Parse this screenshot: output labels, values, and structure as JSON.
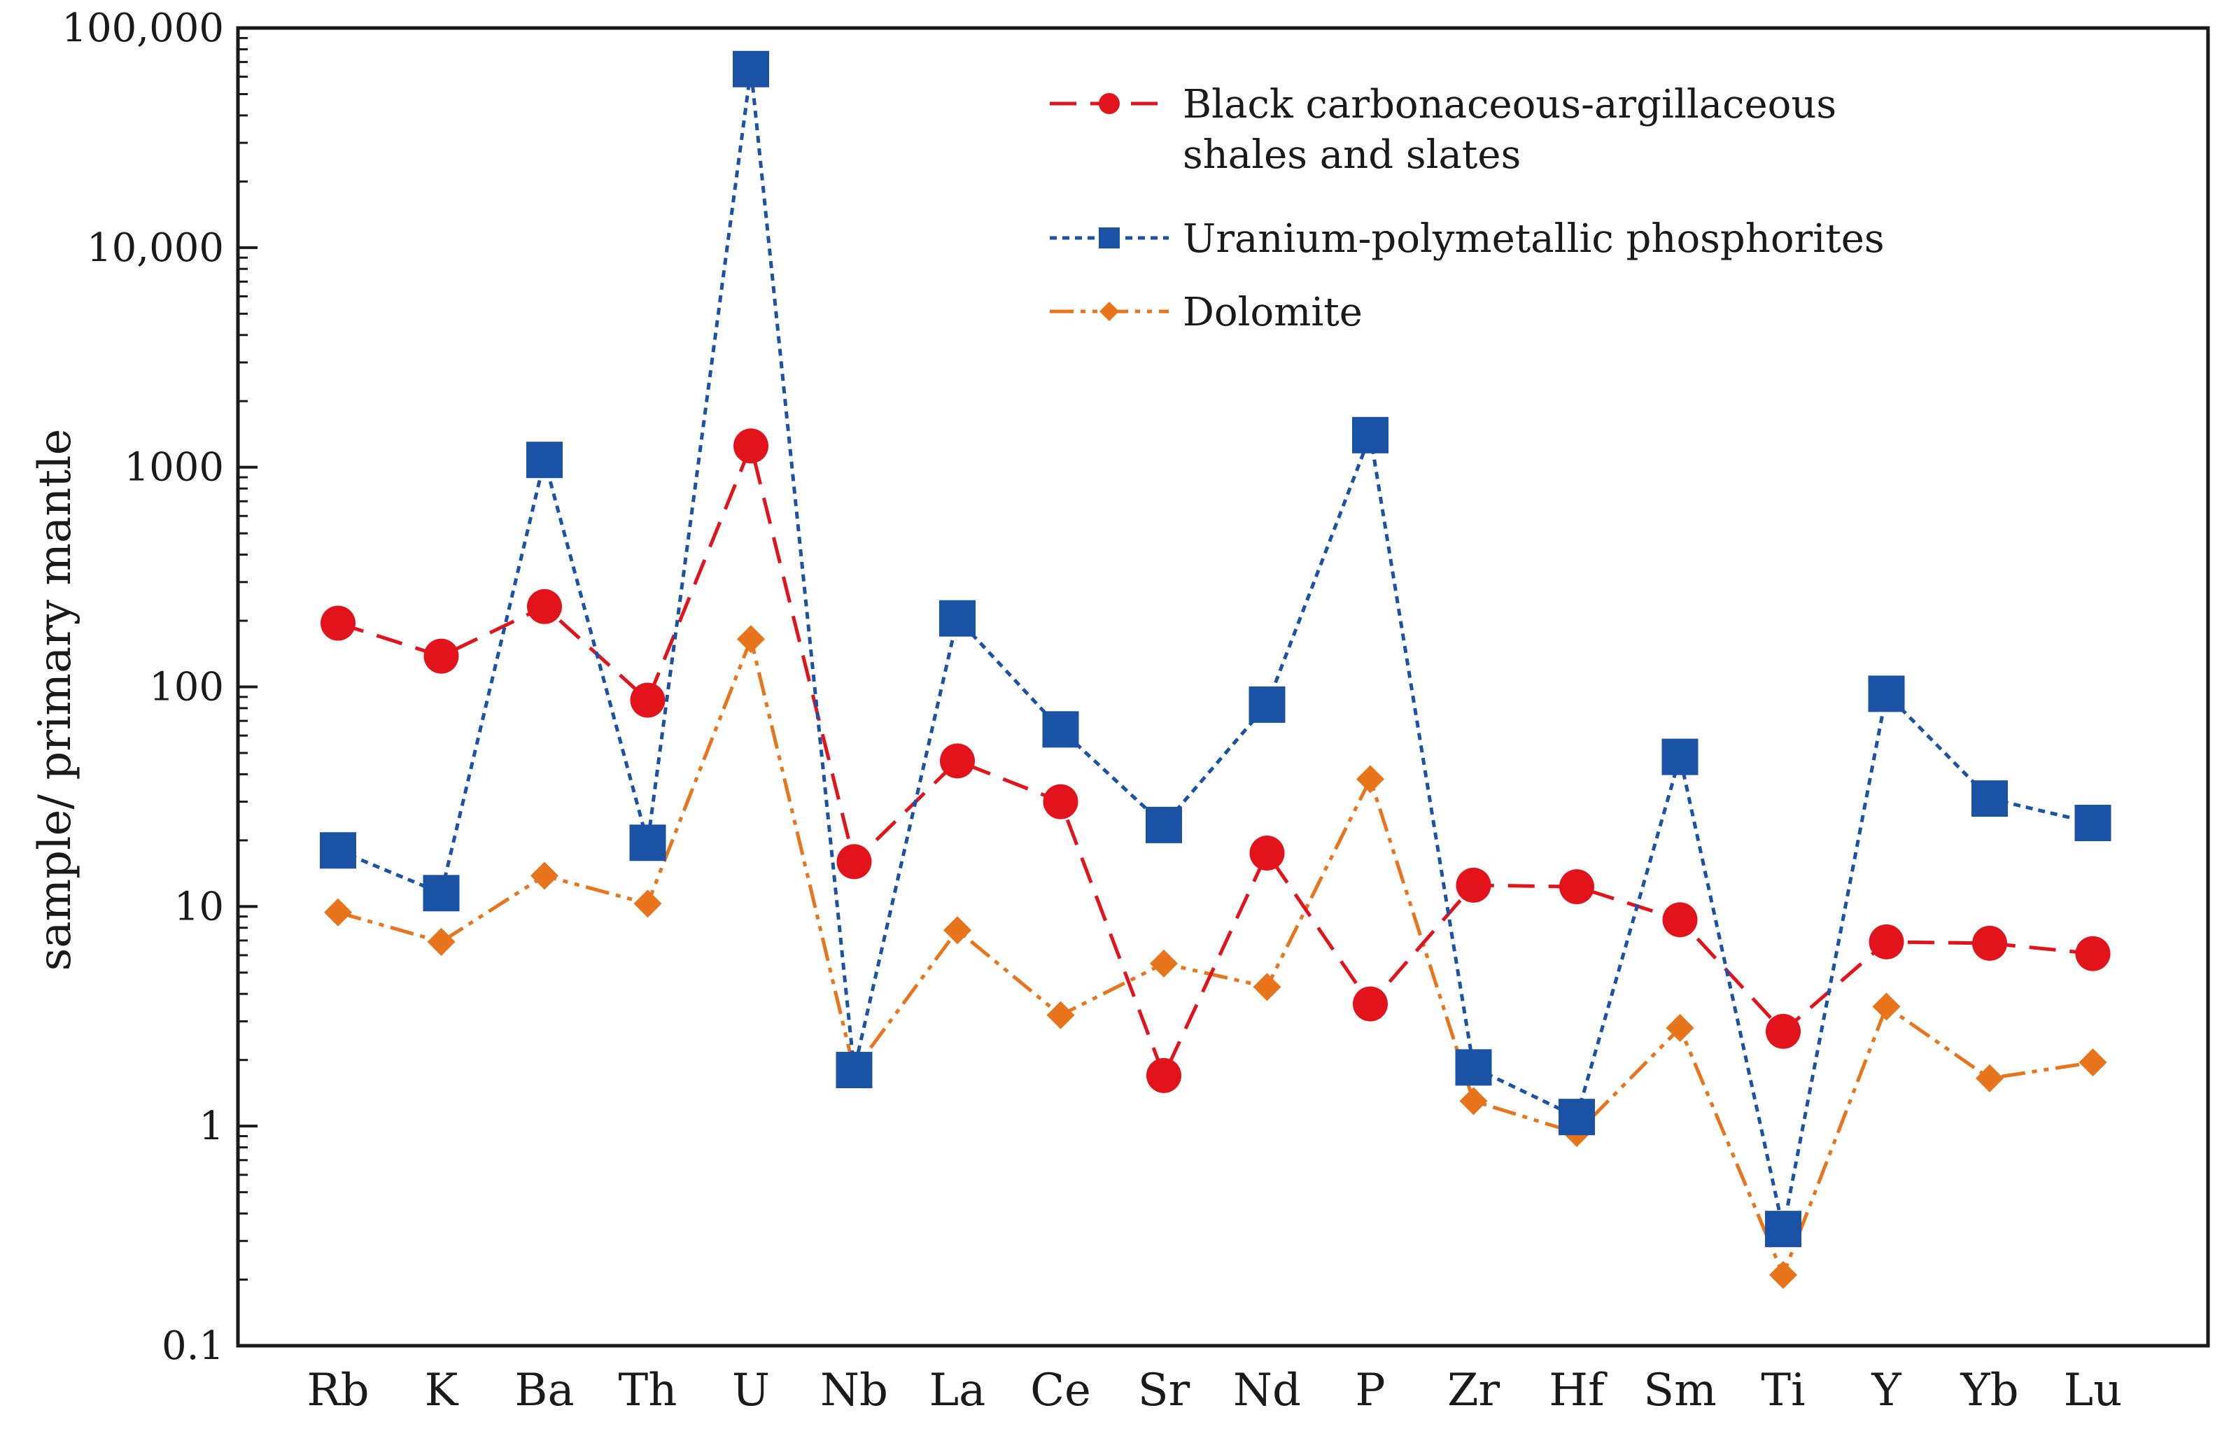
{
  "chart_data": {
    "type": "line",
    "title": "",
    "xlabel": "",
    "ylabel": "sample/ primary mantle",
    "yscale": "log",
    "ylim": [
      0.1,
      100000
    ],
    "yticks": [
      {
        "value": 0.1,
        "label": "0.1"
      },
      {
        "value": 1,
        "label": "1"
      },
      {
        "value": 10,
        "label": "10"
      },
      {
        "value": 100,
        "label": "100"
      },
      {
        "value": 1000,
        "label": "1000"
      },
      {
        "value": 10000,
        "label": "10,000"
      },
      {
        "value": 100000,
        "label": "100,000"
      }
    ],
    "grid": false,
    "legend_position": "top-right",
    "categories": [
      "Rb",
      "K",
      "Ba",
      "Th",
      "U",
      "Nb",
      "La",
      "Ce",
      "Sr",
      "Nd",
      "P",
      "Zr",
      "Hf",
      "Sm",
      "Ti",
      "Y",
      "Yb",
      "Lu"
    ],
    "series": [
      {
        "name_lines": [
          "Black carbonaceous-argillaceous",
          "shales and slates"
        ],
        "color": "#e3131b",
        "marker": "circle",
        "line_style": "dash",
        "values": [
          195,
          138,
          232,
          87,
          1250,
          16,
          46,
          30,
          1.7,
          17.5,
          3.6,
          12.5,
          12.3,
          8.7,
          2.7,
          6.9,
          6.8,
          6.1
        ]
      },
      {
        "name_lines": [
          "Uranium-polymetallic phosphorites"
        ],
        "color": "#1a52a6",
        "marker": "square",
        "line_style": "dot",
        "values": [
          18,
          11.5,
          1080,
          19.5,
          65000,
          1.8,
          205,
          64,
          23.5,
          83,
          1400,
          1.85,
          1.1,
          48,
          0.34,
          93,
          31,
          24
        ]
      },
      {
        "name_lines": [
          "Dolomite"
        ],
        "color": "#e8741c",
        "marker": "diamond",
        "line_style": "dashdotdot",
        "values": [
          9.4,
          6.9,
          13.8,
          10.3,
          165,
          1.8,
          7.8,
          3.2,
          5.5,
          4.3,
          38,
          1.3,
          0.93,
          2.8,
          0.21,
          3.5,
          1.65,
          1.95
        ]
      }
    ]
  }
}
